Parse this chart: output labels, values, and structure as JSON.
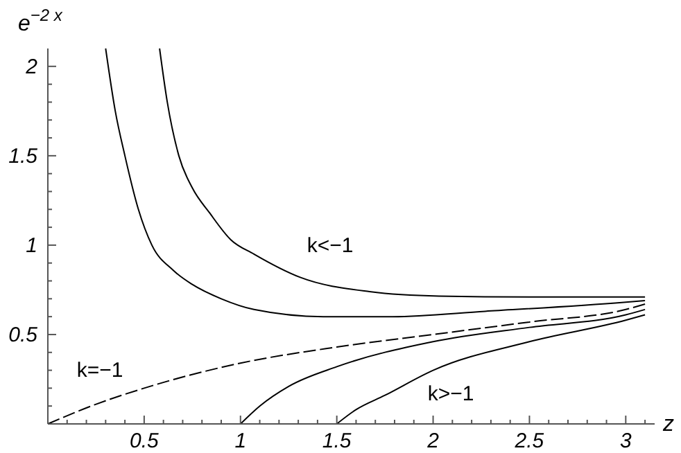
{
  "chart_data": {
    "type": "line",
    "xlabel": "z",
    "ylabel": "e$^{−2 x}$",
    "xlim": [
      0,
      3.15
    ],
    "ylim": [
      0,
      2.1
    ],
    "xticks": [
      {
        "value": 0.1,
        "label": null
      },
      {
        "value": 0.2,
        "label": null
      },
      {
        "value": 0.3,
        "label": null
      },
      {
        "value": 0.4,
        "label": null
      },
      0.5,
      {
        "value": 0.6,
        "label": null
      },
      {
        "value": 0.7,
        "label": null
      },
      {
        "value": 0.8,
        "label": null
      },
      {
        "value": 0.9,
        "label": null
      },
      1,
      {
        "value": 1.1,
        "label": null
      },
      {
        "value": 1.2,
        "label": null
      },
      {
        "value": 1.3,
        "label": null
      },
      {
        "value": 1.4,
        "label": null
      },
      1.5,
      {
        "value": 1.6,
        "label": null
      },
      {
        "value": 1.7,
        "label": null
      },
      {
        "value": 1.8,
        "label": null
      },
      {
        "value": 1.9,
        "label": null
      },
      2,
      {
        "value": 2.1,
        "label": null
      },
      {
        "value": 2.2,
        "label": null
      },
      {
        "value": 2.3,
        "label": null
      },
      {
        "value": 2.4,
        "label": null
      },
      2.5,
      {
        "value": 2.6,
        "label": null
      },
      {
        "value": 2.7,
        "label": null
      },
      {
        "value": 2.8,
        "label": null
      },
      {
        "value": 2.9,
        "label": null
      },
      3,
      {
        "value": 3.1,
        "label": null
      }
    ],
    "yticks": [
      {
        "value": 0.1,
        "label": null
      },
      {
        "value": 0.2,
        "label": null
      },
      {
        "value": 0.3,
        "label": null
      },
      {
        "value": 0.4,
        "label": null
      },
      0.5,
      {
        "value": 0.6,
        "label": null
      },
      {
        "value": 0.7,
        "label": null
      },
      {
        "value": 0.8,
        "label": null
      },
      {
        "value": 0.9,
        "label": null
      },
      1,
      {
        "value": 1.1,
        "label": null
      },
      {
        "value": 1.2,
        "label": null
      },
      {
        "value": 1.3,
        "label": null
      },
      {
        "value": 1.4,
        "label": null
      },
      1.5,
      {
        "value": 1.6,
        "label": null
      },
      {
        "value": 1.7,
        "label": null
      },
      {
        "value": 1.8,
        "label": null
      },
      {
        "value": 1.9,
        "label": null
      },
      2
    ],
    "grid": false,
    "marker": "none",
    "series": [
      {
        "color": "#000000",
        "line_style": "solid",
        "x": [
          0.58,
          0.62,
          0.68,
          0.75,
          0.84,
          0.95,
          1.07,
          1.31,
          1.67,
          2.03,
          2.5,
          3.1
        ],
        "values": [
          2.1,
          1.8,
          1.5,
          1.32,
          1.18,
          1.03,
          0.95,
          0.82,
          0.74,
          0.715,
          0.71,
          0.71
        ]
      },
      {
        "color": "#000000",
        "line_style": "solid",
        "x": [
          0.3,
          0.35,
          0.4,
          0.47,
          0.54,
          0.65,
          0.75,
          0.9,
          1.07,
          1.43,
          1.79,
          2.27,
          2.99,
          3.1
        ],
        "values": [
          2.1,
          1.75,
          1.5,
          1.2,
          1.0,
          0.86,
          0.78,
          0.7,
          0.64,
          0.6,
          0.6,
          0.63,
          0.68,
          0.69
        ]
      },
      {
        "color": "#000000",
        "line_style": "dashed",
        "x": [
          0,
          0.25,
          0.5,
          1,
          1.5,
          2,
          2.5,
          3,
          3.1
        ],
        "values": [
          0,
          0.11,
          0.2,
          0.34,
          0.43,
          0.5,
          0.57,
          0.64,
          0.67
        ]
      },
      {
        "color": "#000000",
        "line_style": "solid",
        "x": [
          1,
          1.1,
          1.25,
          1.5,
          2,
          2.5,
          3,
          3.1
        ],
        "values": [
          0,
          0.1,
          0.21,
          0.32,
          0.46,
          0.54,
          0.61,
          0.64
        ]
      },
      {
        "color": "#000000",
        "line_style": "solid",
        "x": [
          1.5,
          1.6,
          1.75,
          2,
          2.5,
          3,
          3.1
        ],
        "values": [
          0,
          0.08,
          0.16,
          0.3,
          0.46,
          0.58,
          0.61
        ]
      }
    ],
    "annotations": [
      "k<−1",
      "k=−1",
      "k>−1"
    ]
  }
}
